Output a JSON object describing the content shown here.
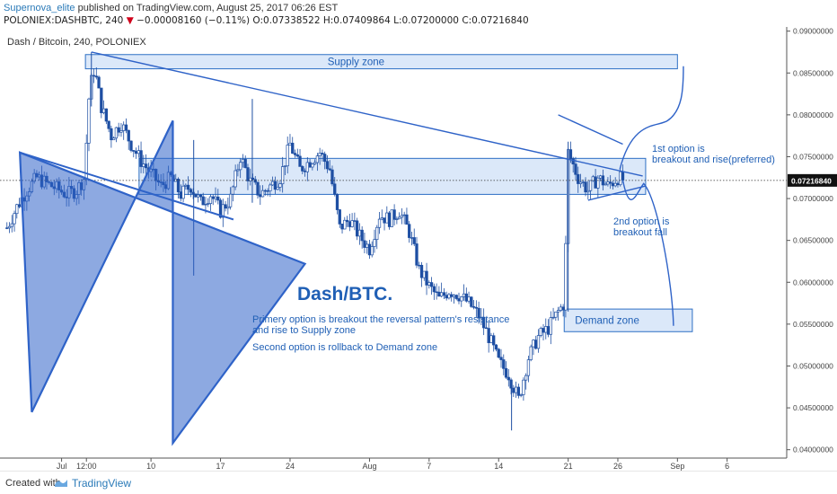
{
  "header": {
    "author": "Supernova_elite",
    "published": "published on TradingView.com, August 25, 2017 06:26 EST",
    "symbol": "POLONIEX:DASHBTC, 240",
    "change": "−0.00008160 (−0.11%)",
    "open": "O:0.07338522",
    "high": "H:0.07409864",
    "low": "L:0.07200000",
    "close": "C:0.07216840"
  },
  "chart_title": "Dash / Bitcoin, 240, POLONIEX",
  "footer": {
    "created_with": "Created with",
    "brand": "TradingView"
  },
  "colors": {
    "candle": "#1e4fa3",
    "zone_fill": "#cfe0f7",
    "zone_stroke": "#2d6fc4",
    "star": "#2f63c8",
    "annotation": "#1f5fb5"
  },
  "chart_data": {
    "type": "candlestick",
    "title": "Dash / Bitcoin, 240, POLONIEX",
    "y_ticks": [
      "0.09000000",
      "0.08500000",
      "0.08000000",
      "0.07500000",
      "0.07000000",
      "0.06500000",
      "0.06000000",
      "0.05500000",
      "0.05000000",
      "0.04500000",
      "0.04000000"
    ],
    "ylim": [
      0.039,
      0.0905
    ],
    "x_ticks": [
      {
        "label": "Jul",
        "day": 0
      },
      {
        "label": "12:00",
        "day": 2.5
      },
      {
        "label": "10",
        "day": 9
      },
      {
        "label": "17",
        "day": 16
      },
      {
        "label": "24",
        "day": 23
      },
      {
        "label": "Aug",
        "day": 31
      },
      {
        "label": "7",
        "day": 37
      },
      {
        "label": "14",
        "day": 44
      },
      {
        "label": "21",
        "day": 51
      },
      {
        "label": "26",
        "day": 56
      },
      {
        "label": "Sep",
        "day": 62
      },
      {
        "label": "6",
        "day": 67
      }
    ],
    "xlim": [
      -6.2,
      73
    ],
    "last_price": "0.07216840",
    "close_path": [
      [
        -5.5,
        0.0665
      ],
      [
        -4.5,
        0.069
      ],
      [
        -3.5,
        0.071
      ],
      [
        -2.5,
        0.0725
      ],
      [
        -1.5,
        0.0718
      ],
      [
        -0.5,
        0.0712
      ],
      [
        0.5,
        0.0705
      ],
      [
        1.5,
        0.071
      ],
      [
        2.3,
        0.0725
      ],
      [
        2.8,
        0.083
      ],
      [
        3.3,
        0.0855
      ],
      [
        4,
        0.081
      ],
      [
        5,
        0.0775
      ],
      [
        6,
        0.079
      ],
      [
        7,
        0.0765
      ],
      [
        8,
        0.0745
      ],
      [
        9,
        0.073
      ],
      [
        10,
        0.0715
      ],
      [
        11,
        0.0725
      ],
      [
        12,
        0.0705
      ],
      [
        13,
        0.0715
      ],
      [
        14,
        0.0695
      ],
      [
        15,
        0.0705
      ],
      [
        16,
        0.0685
      ],
      [
        17,
        0.07
      ],
      [
        18,
        0.075
      ],
      [
        19,
        0.072
      ],
      [
        20,
        0.0705
      ],
      [
        21,
        0.0715
      ],
      [
        22,
        0.0725
      ],
      [
        23,
        0.0765
      ],
      [
        24,
        0.0735
      ],
      [
        25,
        0.0745
      ],
      [
        26,
        0.0755
      ],
      [
        27,
        0.0735
      ],
      [
        28,
        0.0665
      ],
      [
        29,
        0.0675
      ],
      [
        30,
        0.0655
      ],
      [
        31,
        0.064
      ],
      [
        32,
        0.068
      ],
      [
        33,
        0.0675
      ],
      [
        34,
        0.0685
      ],
      [
        35,
        0.066
      ],
      [
        36,
        0.0615
      ],
      [
        37,
        0.0595
      ],
      [
        38,
        0.058
      ],
      [
        39,
        0.059
      ],
      [
        40,
        0.0585
      ],
      [
        41,
        0.0575
      ],
      [
        42,
        0.056
      ],
      [
        43,
        0.0535
      ],
      [
        44,
        0.0505
      ],
      [
        45,
        0.049
      ],
      [
        46,
        0.046
      ],
      [
        47,
        0.051
      ],
      [
        48,
        0.0535
      ],
      [
        49,
        0.0545
      ],
      [
        50,
        0.0565
      ],
      [
        50.6,
        0.0575
      ],
      [
        51,
        0.0755
      ],
      [
        52,
        0.0725
      ],
      [
        53,
        0.071
      ],
      [
        54,
        0.0725
      ],
      [
        55,
        0.0715
      ],
      [
        56,
        0.0725
      ],
      [
        56.6,
        0.0722
      ]
    ],
    "wicks": [
      {
        "day": 3.0,
        "high": 0.0875,
        "low": 0.081
      },
      {
        "day": 13.3,
        "high": 0.077,
        "low": 0.0608
      },
      {
        "day": 19.2,
        "high": 0.0819,
        "low": 0.0695
      },
      {
        "day": 45.3,
        "high": 0.0475,
        "low": 0.0423
      },
      {
        "day": 51.0,
        "high": 0.0768,
        "low": 0.0565
      }
    ],
    "zones": [
      {
        "label": "Supply zone",
        "x0": 2.4,
        "x1": 62,
        "y0": 0.0855,
        "y1": 0.0872
      },
      {
        "label": "",
        "x0": 7.8,
        "x1": 58.8,
        "y0": 0.0705,
        "y1": 0.0748
      },
      {
        "label": "Demand zone",
        "x0": 50.6,
        "x1": 63.5,
        "y0": 0.0541,
        "y1": 0.0568
      }
    ],
    "annotations": {
      "pair": "Dash/BTC.",
      "line1": "Primery option is breakout the reversal pattern's resistance",
      "line2": "and rise to Supply zone",
      "line3": "Second option is rollback to Demand zone",
      "option1_a": "1st option is",
      "option1_b": "breakout and rise(preferred)",
      "option2_a": "2nd option is",
      "option2_b": "breakout fall"
    }
  }
}
